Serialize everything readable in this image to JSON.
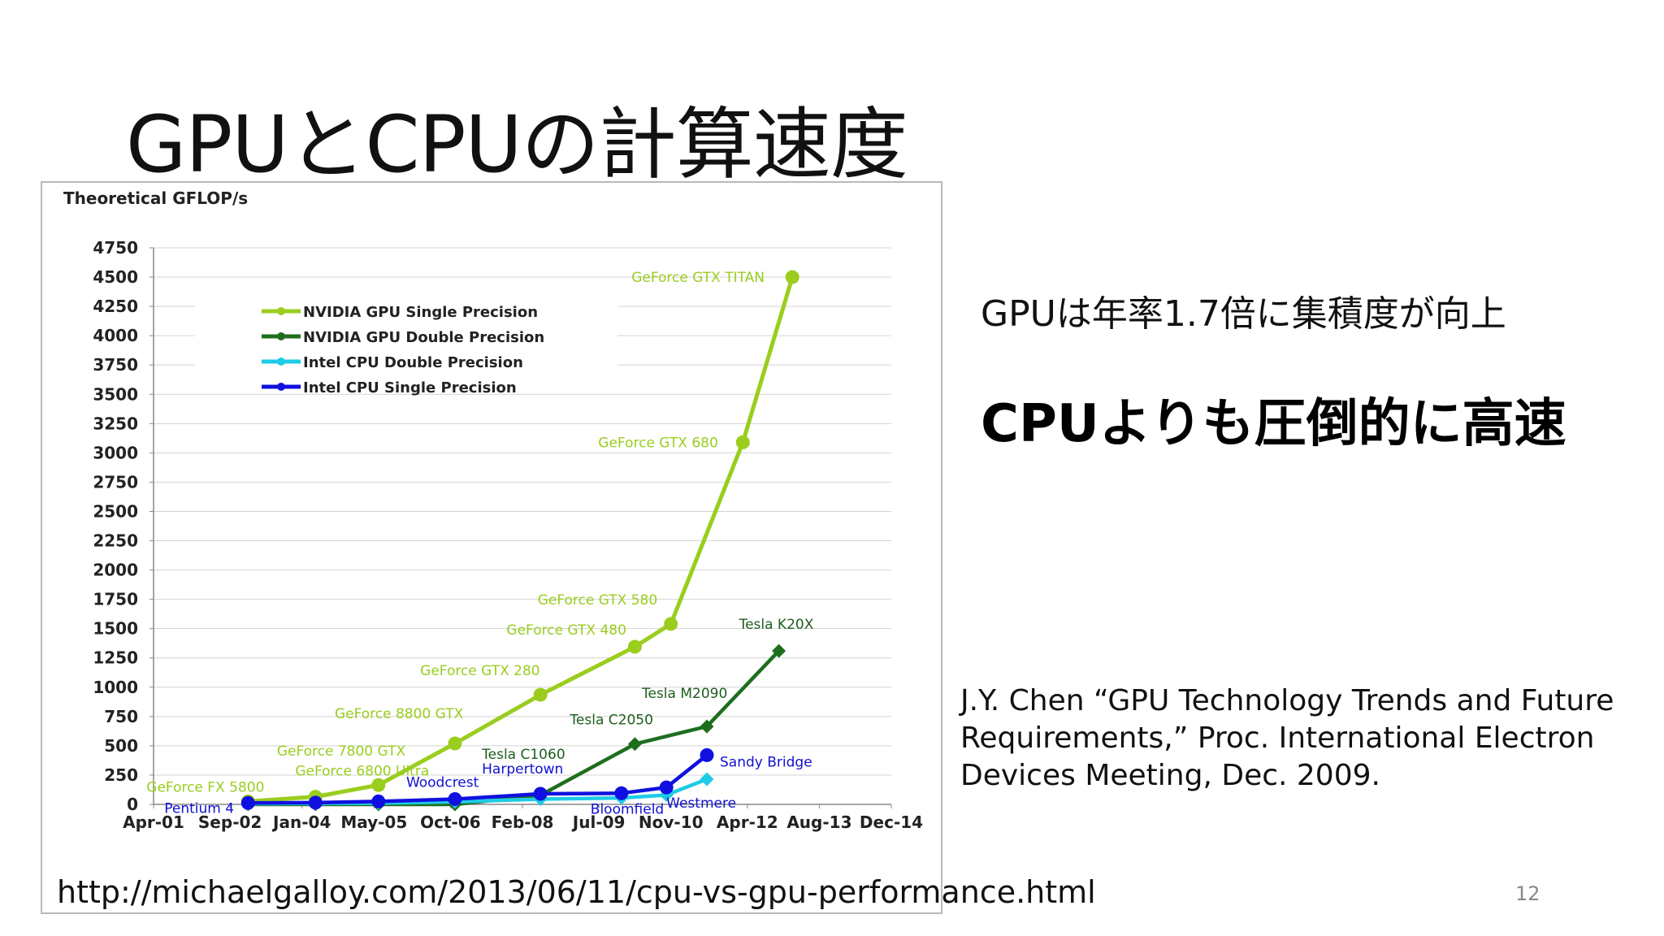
{
  "slide": {
    "title": "GPUとCPUの計算速度",
    "point1": "GPUは年率1.7倍に集積度が向上",
    "point2": "CPUよりも圧倒的に高速",
    "citation": "J.Y. Chen “GPU Technology Trends and Future Requirements,” Proc. International Electron Devices Meeting, Dec. 2009.",
    "source_url": "http://michaelgalloy.com/2013/06/11/cpu-vs-gpu-performance.html",
    "page_number": "12"
  },
  "chart_data": {
    "type": "line",
    "title": "",
    "ylabel": "Theoretical GFLOP/s",
    "xlabel": "",
    "ylim": [
      0,
      4750
    ],
    "y_ticks": [
      "0",
      "250",
      "500",
      "750",
      "1000",
      "1250",
      "1500",
      "1750",
      "2000",
      "2250",
      "2500",
      "2750",
      "3000",
      "3250",
      "3500",
      "3750",
      "4000",
      "4250",
      "4500",
      "4750"
    ],
    "x_ticks": [
      "Apr-01",
      "Sep-02",
      "Jan-04",
      "May-05",
      "Oct-06",
      "Feb-08",
      "Jul-09",
      "Nov-10",
      "Apr-12",
      "Aug-13",
      "Dec-14"
    ],
    "grid": true,
    "legend_position": "top-left",
    "series": [
      {
        "name": "NVIDIA GPU Single Precision",
        "color": "#9acd1e",
        "marker": "circle",
        "points": [
          {
            "x": "Jan-03",
            "y": 25,
            "label": "GeForce FX 5800"
          },
          {
            "x": "Apr-04",
            "y": 65,
            "label": "GeForce 6800 Ultra"
          },
          {
            "x": "Jun-05",
            "y": 165,
            "label": "GeForce 7800 GTX"
          },
          {
            "x": "Nov-06",
            "y": 520,
            "label": "GeForce 8800 GTX"
          },
          {
            "x": "Jun-08",
            "y": 935,
            "label": "GeForce GTX 280"
          },
          {
            "x": "Mar-10",
            "y": 1345,
            "label": "GeForce GTX 480"
          },
          {
            "x": "Nov-10",
            "y": 1540,
            "label": "GeForce GTX 580"
          },
          {
            "x": "Mar-12",
            "y": 3090,
            "label": "GeForce GTX 680"
          },
          {
            "x": "Feb-13",
            "y": 4500,
            "label": "GeForce GTX TITAN"
          }
        ]
      },
      {
        "name": "NVIDIA GPU Double Precision",
        "color": "#1e6e1e",
        "marker": "diamond",
        "points": [
          {
            "x": "Jan-03",
            "y": 0
          },
          {
            "x": "Apr-04",
            "y": 0
          },
          {
            "x": "Jun-05",
            "y": 0
          },
          {
            "x": "Nov-06",
            "y": 0
          },
          {
            "x": "Jun-08",
            "y": 78,
            "label": "Tesla C1060"
          },
          {
            "x": "Mar-10",
            "y": 515,
            "label": "Tesla C2050"
          },
          {
            "x": "Jul-11",
            "y": 665,
            "label": "Tesla M2090"
          },
          {
            "x": "Nov-12",
            "y": 1310,
            "label": "Tesla K20X"
          }
        ]
      },
      {
        "name": "Intel CPU Double Precision",
        "color": "#1ecbe6",
        "marker": "diamond",
        "points": [
          {
            "x": "Jan-03",
            "y": 6
          },
          {
            "x": "Apr-04",
            "y": 8
          },
          {
            "x": "Jun-05",
            "y": 10
          },
          {
            "x": "Nov-06",
            "y": 22
          },
          {
            "x": "Jun-08",
            "y": 45
          },
          {
            "x": "Dec-09",
            "y": 55
          },
          {
            "x": "Oct-10",
            "y": 80
          },
          {
            "x": "Jul-11",
            "y": 215
          }
        ]
      },
      {
        "name": "Intel CPU Single Precision",
        "color": "#1010e0",
        "marker": "circle",
        "points": [
          {
            "x": "Jan-03",
            "y": 12,
            "label": "Pentium 4"
          },
          {
            "x": "Apr-04",
            "y": 15
          },
          {
            "x": "Jun-05",
            "y": 25
          },
          {
            "x": "Nov-06",
            "y": 45,
            "label": "Woodcrest"
          },
          {
            "x": "Jun-08",
            "y": 90,
            "label": "Harpertown"
          },
          {
            "x": "Dec-09",
            "y": 95,
            "label": "Bloomfield"
          },
          {
            "x": "Oct-10",
            "y": 145,
            "label": "Westmere"
          },
          {
            "x": "Jul-11",
            "y": 420,
            "label": "Sandy Bridge"
          }
        ]
      }
    ]
  }
}
